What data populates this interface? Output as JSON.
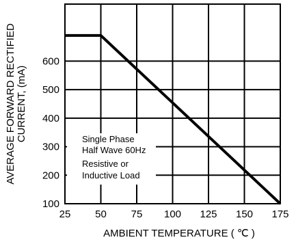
{
  "chart_data": {
    "type": "line",
    "title": "",
    "xlabel": "AMBIENT TEMPERATURE ( ℃ )",
    "ylabel_lines": [
      "AVERAGE FORWARD RECTIFIED",
      "CURRENT, (mA)"
    ],
    "x_ticks": [
      "25",
      "50",
      "75",
      "100",
      "125",
      "150",
      "175"
    ],
    "y_ticks": [
      "100",
      "200",
      "300",
      "400",
      "500",
      "600"
    ],
    "xlim": [
      25,
      175
    ],
    "ylim": [
      100,
      800
    ],
    "grid": true,
    "series": [
      {
        "x": [
          25,
          50,
          175
        ],
        "y": [
          690,
          690,
          100
        ]
      }
    ],
    "annotation_lines": [
      "Single Phase",
      "Half Wave 60Hz",
      "Resistive or",
      "Inductive Load"
    ],
    "colors": {
      "line": "#000000",
      "grid": "#000000",
      "background": "#ffffff"
    }
  }
}
